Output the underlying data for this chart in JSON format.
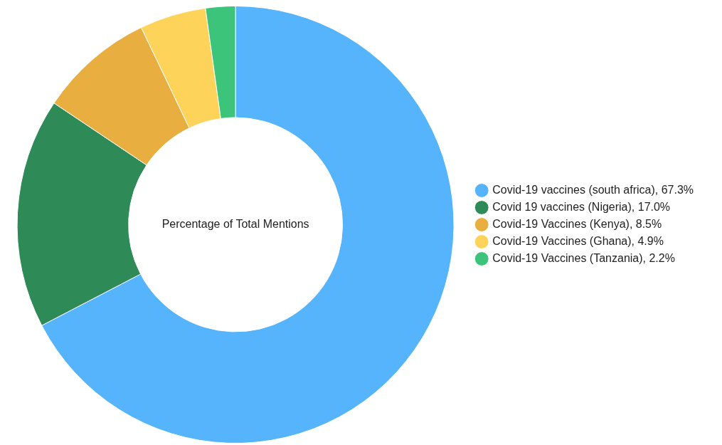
{
  "chart_data": {
    "type": "donut",
    "title": "Percentage of Total Mentions",
    "categories": [
      "Covid-19 vaccines (south africa)",
      "Covid 19 vaccines (Nigeria)",
      "Covid-19 Vaccines (Kenya)",
      "Covid-19 Vaccines (Ghana)",
      "Covid-19 Vaccines (Tanzania)"
    ],
    "values": [
      67.3,
      17.0,
      8.5,
      4.9,
      2.2
    ],
    "value_labels": [
      "67.3%",
      "17.0%",
      "8.5%",
      "4.9%",
      "2.2%"
    ],
    "colors": [
      "#55b4fc",
      "#2e8b57",
      "#e8ae40",
      "#fdd35a",
      "#3cc47a"
    ],
    "legend": "right"
  }
}
